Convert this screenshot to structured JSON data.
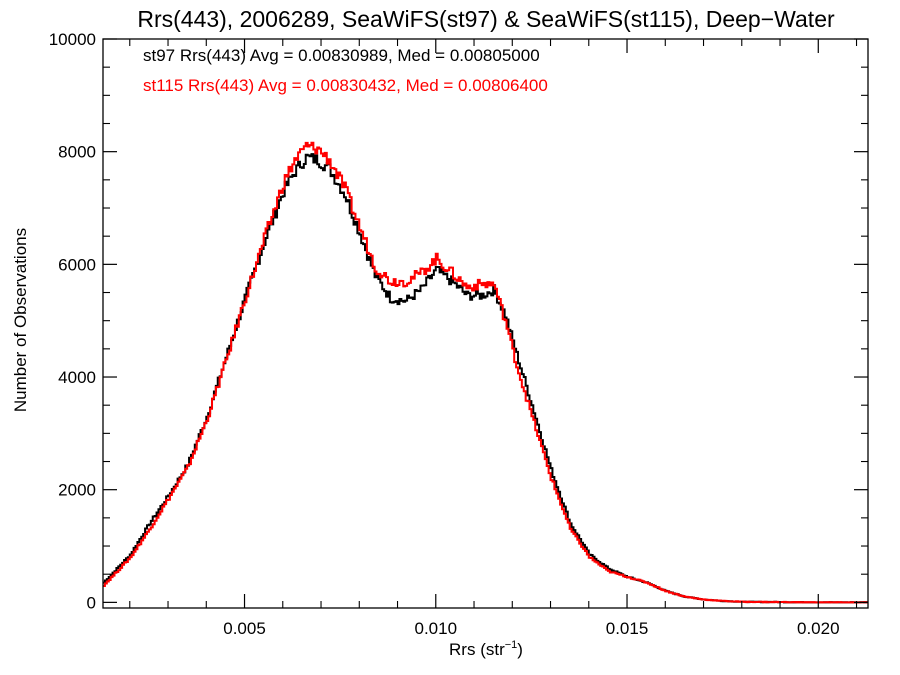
{
  "chart_data": {
    "type": "line",
    "title": "Rrs(443), 2006289, SeaWiFS(st97) & SeaWiFS(st115), Deep−Water",
    "xlabel": "Rrs (str",
    "xlabel_sup": "−1",
    "xlabel_close": ")",
    "ylabel": "Number of Observations",
    "xlim": [
      0.0013,
      0.0213
    ],
    "ylim": [
      -100,
      10000
    ],
    "x_ticks": [
      {
        "value": 0.005,
        "label": "0.005"
      },
      {
        "value": 0.01,
        "label": "0.010"
      },
      {
        "value": 0.015,
        "label": "0.015"
      },
      {
        "value": 0.02,
        "label": "0.020"
      }
    ],
    "y_ticks": [
      {
        "value": 0,
        "label": "0"
      },
      {
        "value": 2000,
        "label": "2000"
      },
      {
        "value": 4000,
        "label": "4000"
      },
      {
        "value": 6000,
        "label": "6000"
      },
      {
        "value": 8000,
        "label": "8000"
      },
      {
        "value": 10000,
        "label": "10000"
      }
    ],
    "annotations": [
      {
        "text": "st97 Rrs(443) Avg = 0.00830989, Med = 0.00805000",
        "color": "#000000"
      },
      {
        "text": "st115 Rrs(443) Avg = 0.00830432, Med = 0.00806400",
        "color": "#ff0000"
      }
    ],
    "series": [
      {
        "color": "#000000",
        "x": [
          0.0013,
          0.002,
          0.0025,
          0.003,
          0.0035,
          0.004,
          0.0045,
          0.005,
          0.0055,
          0.006,
          0.0063,
          0.0066,
          0.0069,
          0.0072,
          0.0076,
          0.008,
          0.0084,
          0.0088,
          0.0092,
          0.0096,
          0.01,
          0.0104,
          0.0108,
          0.0112,
          0.0115,
          0.0118,
          0.0121,
          0.0125,
          0.013,
          0.0135,
          0.014,
          0.0145,
          0.015,
          0.0155,
          0.016,
          0.0165,
          0.017,
          0.0175,
          0.018,
          0.019,
          0.02,
          0.0213
        ],
        "y": [
          350,
          850,
          1400,
          1900,
          2450,
          3300,
          4350,
          5400,
          6400,
          7300,
          7650,
          7900,
          7850,
          7700,
          7250,
          6550,
          5800,
          5400,
          5350,
          5550,
          5900,
          5700,
          5450,
          5450,
          5550,
          5100,
          4400,
          3500,
          2350,
          1400,
          850,
          600,
          450,
          350,
          200,
          100,
          50,
          25,
          10,
          5,
          0,
          0
        ]
      },
      {
        "color": "#ff0000",
        "x": [
          0.0013,
          0.002,
          0.0025,
          0.003,
          0.0035,
          0.004,
          0.0045,
          0.005,
          0.0055,
          0.006,
          0.0063,
          0.0066,
          0.0069,
          0.0072,
          0.0076,
          0.008,
          0.0084,
          0.0088,
          0.0092,
          0.0096,
          0.01,
          0.0104,
          0.0108,
          0.0112,
          0.0115,
          0.0118,
          0.0121,
          0.0125,
          0.013,
          0.0135,
          0.014,
          0.0145,
          0.015,
          0.0155,
          0.016,
          0.0165,
          0.017,
          0.0175,
          0.018,
          0.019,
          0.02,
          0.0213
        ],
        "y": [
          300,
          800,
          1300,
          1850,
          2400,
          3250,
          4300,
          5400,
          6450,
          7450,
          7850,
          8100,
          8050,
          7850,
          7350,
          6650,
          5950,
          5700,
          5700,
          5850,
          6100,
          5850,
          5600,
          5650,
          5650,
          5000,
          4200,
          3300,
          2200,
          1300,
          800,
          550,
          450,
          350,
          200,
          100,
          50,
          25,
          10,
          5,
          0,
          0
        ]
      }
    ],
    "grid": false,
    "legend": "none"
  }
}
